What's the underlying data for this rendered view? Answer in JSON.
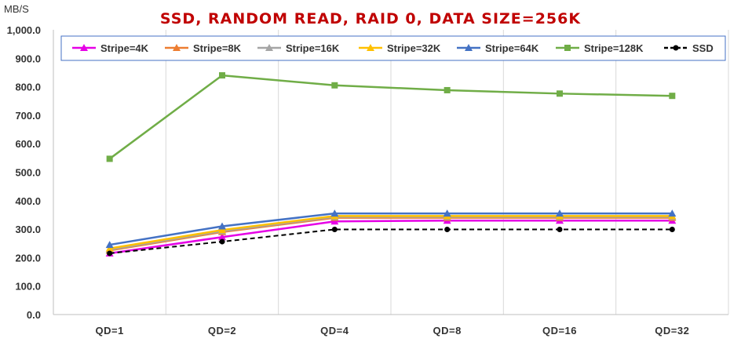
{
  "chart_data": {
    "type": "line",
    "title": "SSD, RANDOM READ, RAID 0, DATA SIZE=256K",
    "ylabel": "MB/S",
    "xlabel": "",
    "categories": [
      "QD=1",
      "QD=2",
      "QD=4",
      "QD=8",
      "QD=16",
      "QD=32"
    ],
    "ylim": [
      0,
      1000
    ],
    "yticks": [
      "0.0",
      "100.0",
      "200.0",
      "300.0",
      "400.0",
      "500.0",
      "600.0",
      "700.0",
      "800.0",
      "900.0",
      "1,000.0"
    ],
    "grid": "vertical",
    "legend": "top",
    "series": [
      {
        "name": "Stripe=4K",
        "color": "#e600e6",
        "marker": "triangle",
        "dash": false,
        "values": [
          215,
          272,
          327,
          330,
          330,
          330
        ]
      },
      {
        "name": "Stripe=8K",
        "color": "#ed7d31",
        "marker": "triangle",
        "dash": false,
        "values": [
          225,
          290,
          340,
          340,
          340,
          340
        ]
      },
      {
        "name": "Stripe=16K",
        "color": "#a5a5a5",
        "marker": "triangle",
        "dash": false,
        "values": [
          228,
          293,
          343,
          343,
          343,
          343
        ]
      },
      {
        "name": "Stripe=32K",
        "color": "#ffc000",
        "marker": "triangle",
        "dash": false,
        "values": [
          232,
          297,
          346,
          346,
          346,
          346
        ]
      },
      {
        "name": "Stripe=64K",
        "color": "#4472c4",
        "marker": "triangle",
        "dash": false,
        "values": [
          245,
          310,
          355,
          355,
          355,
          355
        ]
      },
      {
        "name": "Stripe=128K",
        "color": "#70ad47",
        "marker": "square",
        "dash": false,
        "values": [
          547,
          840,
          805,
          788,
          776,
          768
        ]
      },
      {
        "name": "SSD",
        "color": "#000000",
        "marker": "circle",
        "dash": true,
        "values": [
          215,
          256,
          299,
          299,
          299,
          299
        ]
      }
    ]
  }
}
